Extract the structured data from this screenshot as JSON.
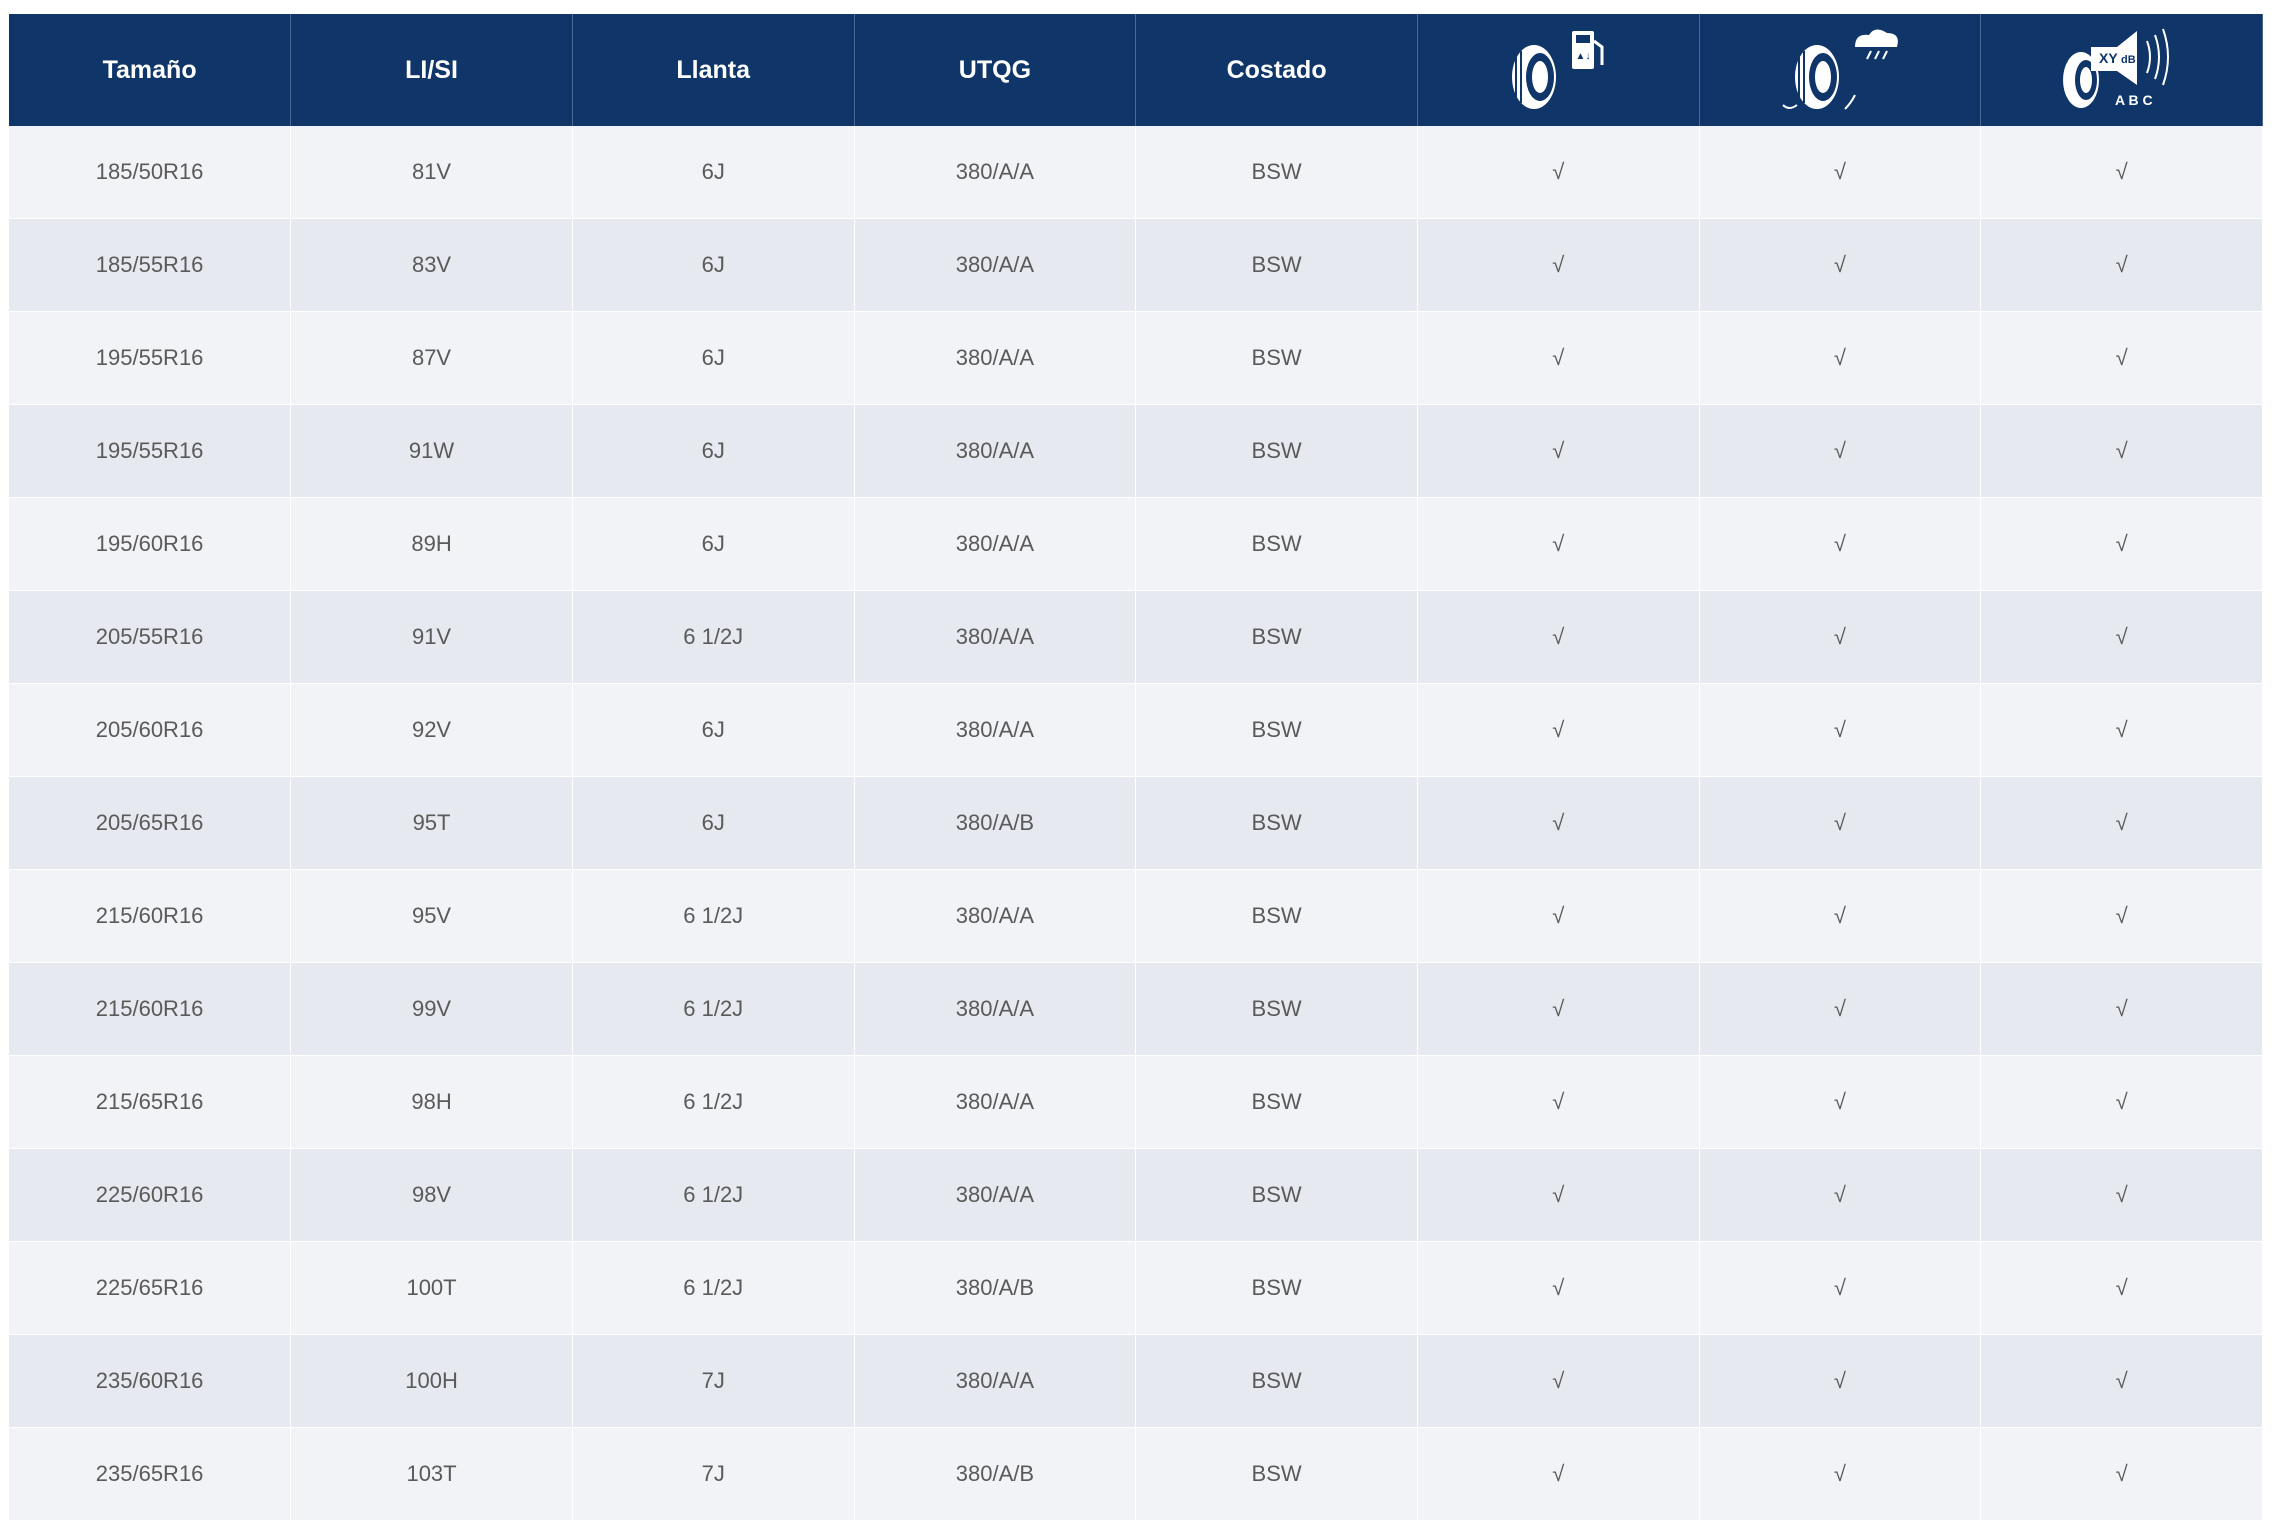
{
  "header": {
    "columns": [
      "Tamaño",
      "LI/SI",
      "Llanta",
      "UTQG",
      "Costado"
    ],
    "noise_icon_text": [
      "XY",
      "dB",
      "A B C"
    ]
  },
  "table": {
    "rows": [
      [
        "185/50R16",
        "81V",
        "6J",
        "380/A/A",
        "BSW",
        "√",
        "√",
        "√"
      ],
      [
        "185/55R16",
        "83V",
        "6J",
        "380/A/A",
        "BSW",
        "√",
        "√",
        "√"
      ],
      [
        "195/55R16",
        "87V",
        "6J",
        "380/A/A",
        "BSW",
        "√",
        "√",
        "√"
      ],
      [
        "195/55R16",
        "91W",
        "6J",
        "380/A/A",
        "BSW",
        "√",
        "√",
        "√"
      ],
      [
        "195/60R16",
        "89H",
        "6J",
        "380/A/A",
        "BSW",
        "√",
        "√",
        "√"
      ],
      [
        "205/55R16",
        "91V",
        "6 1/2J",
        "380/A/A",
        "BSW",
        "√",
        "√",
        "√"
      ],
      [
        "205/60R16",
        "92V",
        "6J",
        "380/A/A",
        "BSW",
        "√",
        "√",
        "√"
      ],
      [
        "205/65R16",
        "95T",
        "6J",
        "380/A/B",
        "BSW",
        "√",
        "√",
        "√"
      ],
      [
        "215/60R16",
        "95V",
        "6 1/2J",
        "380/A/A",
        "BSW",
        "√",
        "√",
        "√"
      ],
      [
        "215/60R16",
        "99V",
        "6 1/2J",
        "380/A/A",
        "BSW",
        "√",
        "√",
        "√"
      ],
      [
        "215/65R16",
        "98H",
        "6 1/2J",
        "380/A/A",
        "BSW",
        "√",
        "√",
        "√"
      ],
      [
        "225/60R16",
        "98V",
        "6 1/2J",
        "380/A/A",
        "BSW",
        "√",
        "√",
        "√"
      ],
      [
        "225/65R16",
        "100T",
        "6 1/2J",
        "380/A/B",
        "BSW",
        "√",
        "√",
        "√"
      ],
      [
        "235/60R16",
        "100H",
        "7J",
        "380/A/A",
        "BSW",
        "√",
        "√",
        "√"
      ],
      [
        "235/65R16",
        "103T",
        "7J",
        "380/A/B",
        "BSW",
        "√",
        "√",
        "√"
      ]
    ]
  }
}
